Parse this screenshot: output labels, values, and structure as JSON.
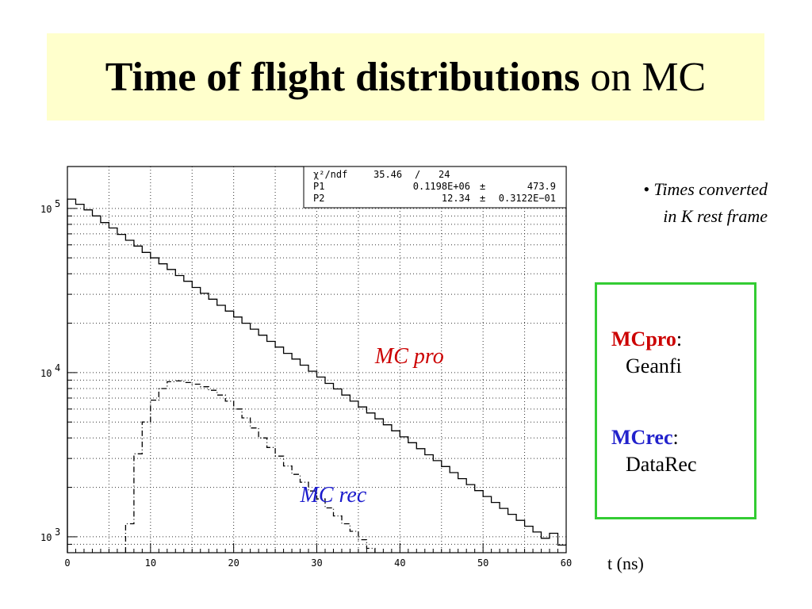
{
  "title": {
    "bold": "Time of flight distributions",
    "rest": " on MC"
  },
  "note": {
    "line1": "• Times converted",
    "line2": "in K rest frame"
  },
  "legend": {
    "items": [
      {
        "name_prefix": "MC",
        "name_suffix": "pro",
        "sep": ":",
        "desc": "Geanfi",
        "prefix_color": "#cc0000",
        "suffix_color": "#cc0000"
      },
      {
        "name_prefix": "MC",
        "name_suffix": "rec",
        "sep": ":",
        "desc": "DataRec",
        "prefix_color": "#2222cc",
        "suffix_color": "#2222cc"
      }
    ]
  },
  "x_unit_label": "t (ns)",
  "colors": {
    "title_bg": "#ffffcc",
    "legend_border": "#33cc33",
    "mcpro": "#cc0000",
    "mcrec": "#1a1acc"
  },
  "chart_data": {
    "type": "line",
    "xlim": [
      0,
      60
    ],
    "ylim": [
      800,
      180000
    ],
    "yscale": "log",
    "grid": true,
    "x_ticks": [
      0,
      10,
      20,
      30,
      40,
      50,
      60
    ],
    "x_tick_labels": [
      "0",
      "10",
      "20",
      "30",
      "40",
      "50",
      "60"
    ],
    "y_ticks": [
      1000,
      10000,
      100000
    ],
    "y_tick_labels": [
      {
        "base": "10",
        "exp": "3"
      },
      {
        "base": "10",
        "exp": "4"
      },
      {
        "base": "10",
        "exp": "5"
      }
    ],
    "series": [
      {
        "name": "MC pro",
        "style": "solid",
        "step": 1,
        "x_start": 0,
        "x_end": 60,
        "values": [
          114000,
          106000,
          98000,
          90000,
          82000,
          76000,
          69500,
          64000,
          59000,
          54000,
          50000,
          46000,
          42500,
          39000,
          36000,
          33000,
          30400,
          28000,
          25700,
          23700,
          21800,
          20000,
          18400,
          16900,
          15500,
          14300,
          13100,
          12100,
          11100,
          10200,
          9400,
          8600,
          7950,
          7300,
          6700,
          6180,
          5680,
          5230,
          4810,
          4420,
          4060,
          3740,
          3440,
          3160,
          2910,
          2680,
          2460,
          2260,
          2080,
          1910,
          1760,
          1620,
          1490,
          1370,
          1260,
          1160,
          1070,
          980,
          1050,
          890
        ]
      },
      {
        "name": "MC rec",
        "style": "dashdot",
        "step": 1,
        "x_start": 7,
        "x_end": 37,
        "values": [
          1200,
          3200,
          5000,
          6800,
          8000,
          8800,
          8900,
          8700,
          8500,
          8200,
          7800,
          7300,
          6700,
          6000,
          5300,
          4600,
          4000,
          3500,
          3100,
          2700,
          2400,
          2150,
          1900,
          1700,
          1500,
          1340,
          1200,
          1080,
          960,
          850
        ]
      }
    ],
    "fit_stats": {
      "rows": [
        [
          "χ²/ndf",
          "35.46",
          "/",
          "24"
        ],
        [
          "P1",
          "0.1198E+06",
          "±",
          "473.9"
        ],
        [
          "P2",
          "12.34",
          "±",
          "0.3122E−01"
        ]
      ]
    },
    "annotations": [
      {
        "text": "MC pro",
        "color": "#cc0000",
        "x": 37.0,
        "y": 12000
      },
      {
        "text": "MC rec",
        "color": "#1a1acc",
        "x": 28.0,
        "y": 1700
      }
    ]
  }
}
